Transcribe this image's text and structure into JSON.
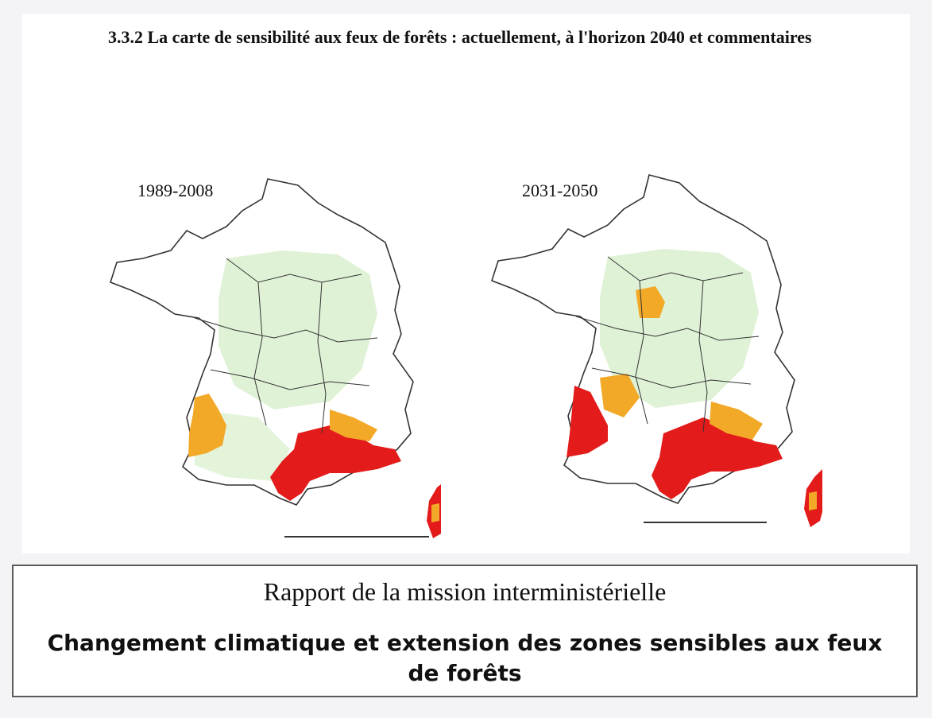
{
  "section": {
    "heading": "3.3.2 La carte de sensibilité aux feux de forêts : actuellement, à l'horizon 2040 et commentaires"
  },
  "maps": [
    {
      "period": "1989-2008",
      "image": "france-wildfire-sensitivity-map-current"
    },
    {
      "period": "2031-2050",
      "image": "france-wildfire-sensitivity-map-projected"
    }
  ],
  "colors": {
    "low": "#d8efcc",
    "medium": "#f3a928",
    "high": "#e31b1b",
    "border": "#333333",
    "background": "#ffffff"
  },
  "report": {
    "title": "Rapport de la mission interministérielle",
    "subtitle": "Changement climatique et extension des zones sensibles aux feux de forêts"
  }
}
